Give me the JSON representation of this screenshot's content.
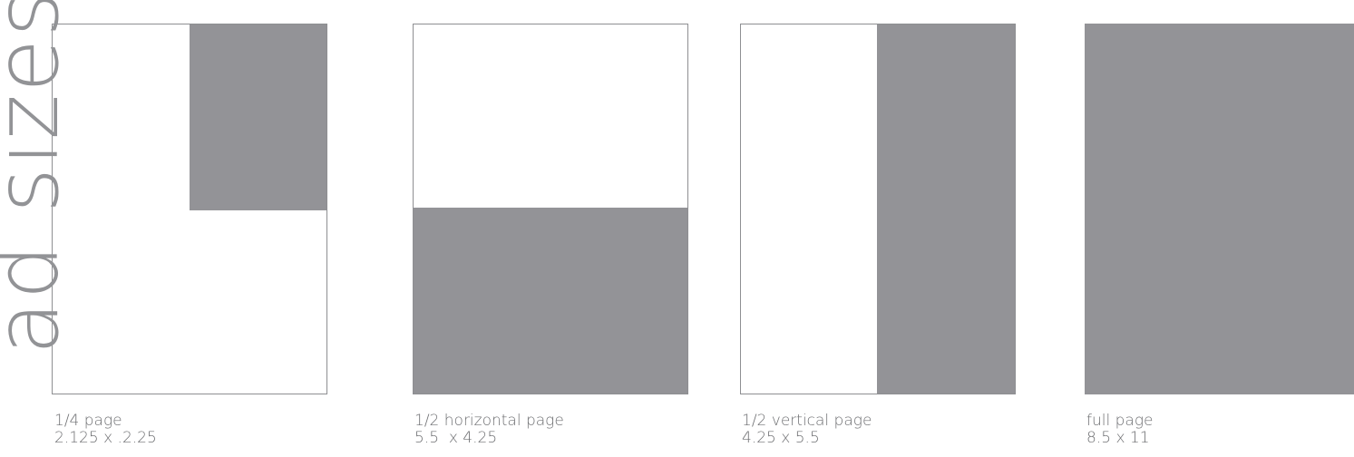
{
  "title": "ad sizes",
  "colors": {
    "ad_fill": "#939397",
    "border": "#8e8f92",
    "text": "#6e6f72",
    "title": "#929396"
  },
  "ads": [
    {
      "name": "1/4 page",
      "size": "2.125 x .2.25"
    },
    {
      "name": "1/2 horizontal page",
      "size": "5.5  x 4.25"
    },
    {
      "name": "1/2 vertical page",
      "size": "4.25 x 5.5"
    },
    {
      "name": "full page",
      "size": "8.5 x 11"
    }
  ]
}
